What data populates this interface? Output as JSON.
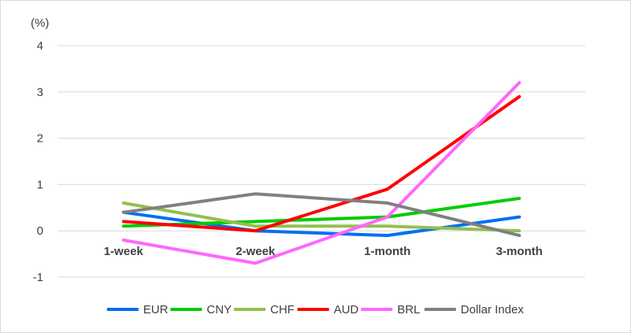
{
  "chart_data": {
    "type": "line",
    "unit_label": "(%)",
    "categories": [
      "1-week",
      "2-week",
      "1-month",
      "3-month"
    ],
    "ylim": [
      -1,
      4
    ],
    "yticks": [
      -1,
      0,
      1,
      2,
      3,
      4
    ],
    "grid": true,
    "legend_position": "bottom",
    "series": [
      {
        "name": "EUR",
        "color": "#0070f0",
        "values": [
          0.4,
          0.0,
          -0.1,
          0.3
        ]
      },
      {
        "name": "CNY",
        "color": "#00cc00",
        "values": [
          0.1,
          0.2,
          0.3,
          0.7
        ]
      },
      {
        "name": "CHF",
        "color": "#92c050",
        "values": [
          0.6,
          0.1,
          0.1,
          0.0
        ]
      },
      {
        "name": "AUD",
        "color": "#ff0000",
        "values": [
          0.2,
          0.0,
          0.9,
          2.9
        ]
      },
      {
        "name": "BRL",
        "color": "#ff66ff",
        "values": [
          -0.2,
          -0.7,
          0.3,
          3.2
        ]
      },
      {
        "name": "Dollar Index",
        "color": "#808080",
        "values": [
          0.4,
          0.8,
          0.6,
          -0.1
        ]
      }
    ]
  }
}
